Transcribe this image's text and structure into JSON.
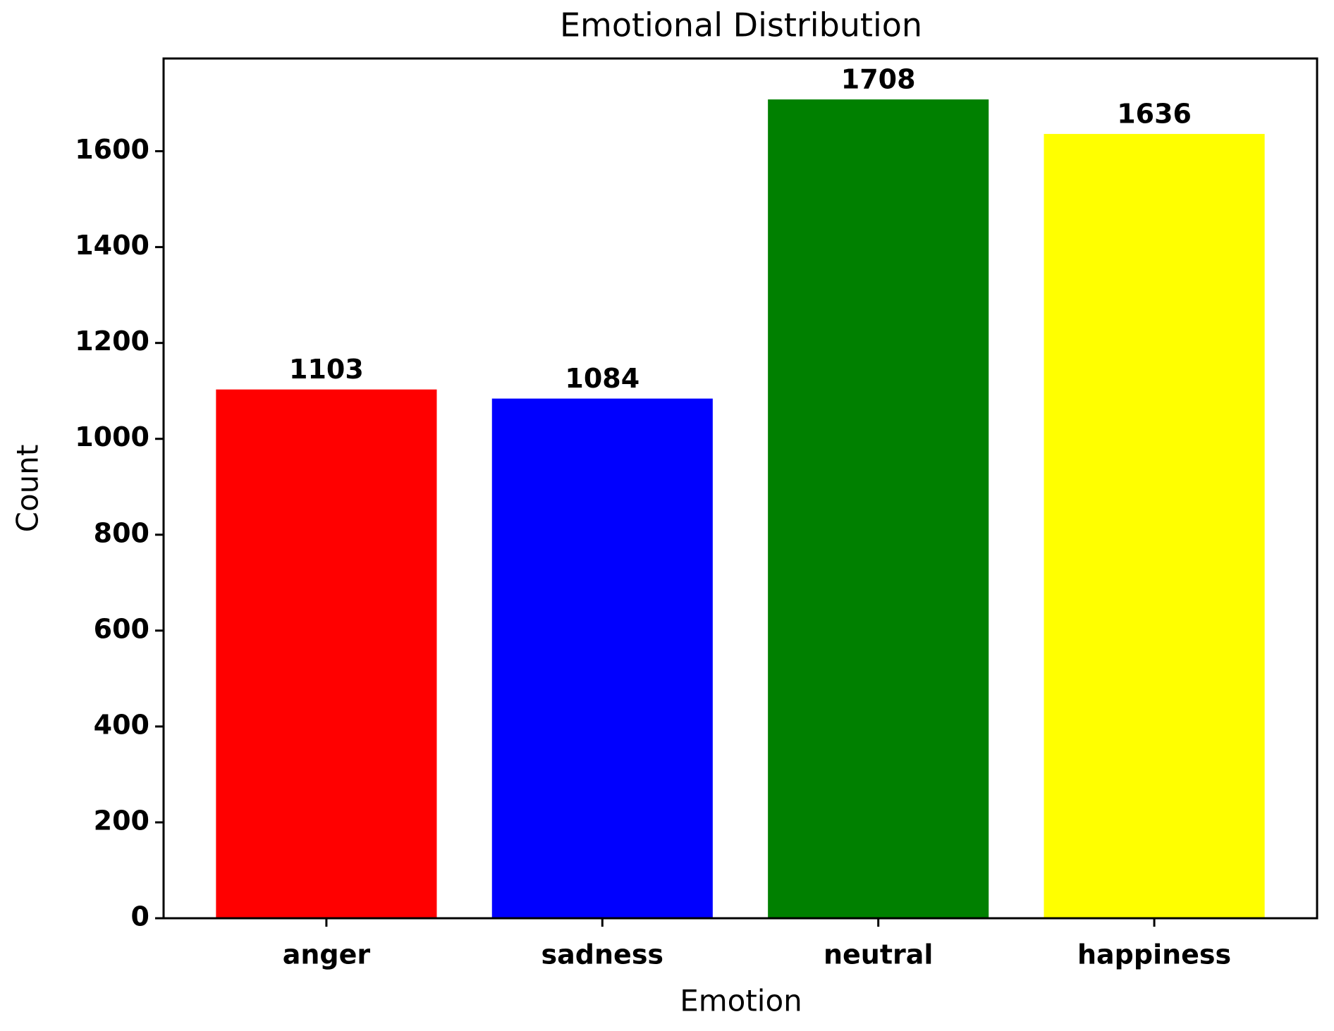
{
  "chart_data": {
    "type": "bar",
    "title": "Emotional Distribution",
    "x_label": "Emotion",
    "y_label": "Count",
    "categories": [
      "anger",
      "sadness",
      "neutral",
      "happiness"
    ],
    "values": [
      1103,
      1084,
      1708,
      1636
    ],
    "colors": [
      "#ff0000",
      "#0000ff",
      "#008000",
      "#ffff00"
    ],
    "ylim": [
      0,
      1793.4
    ],
    "yticks": [
      0,
      200,
      400,
      600,
      800,
      1000,
      1200,
      1400,
      1600
    ]
  }
}
